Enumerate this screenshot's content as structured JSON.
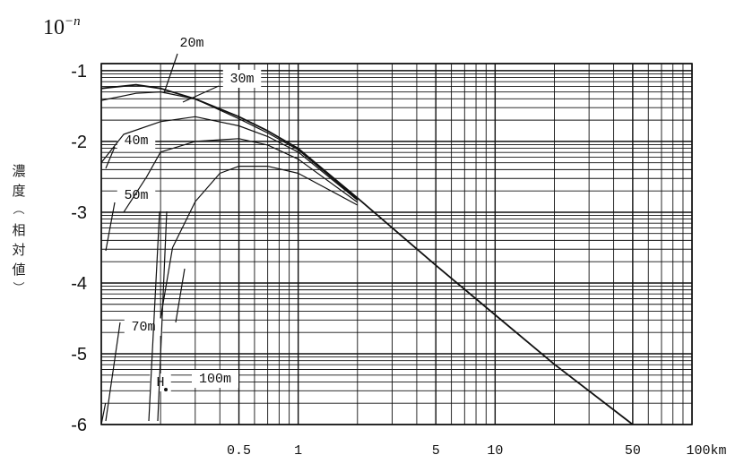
{
  "chart_data": {
    "type": "line",
    "title": "",
    "y_axis": {
      "label_chars": [
        "濃",
        "度",
        "︵",
        "相",
        "対",
        "値",
        "︶"
      ],
      "exponent_base": "10",
      "exponent_sup": "−n",
      "ticks": [
        "-1",
        "-2",
        "-3",
        "-4",
        "-5",
        "-6"
      ],
      "ylim": [
        -6,
        -0.9
      ]
    },
    "x_axis": {
      "scale": "log",
      "ticks": [
        {
          "label": "0.5",
          "value": 0.5
        },
        {
          "label": "1",
          "value": 1
        },
        {
          "label": "5",
          "value": 5
        },
        {
          "label": "10",
          "value": 10
        },
        {
          "label": "50",
          "value": 50
        },
        {
          "label": "100km",
          "value": 100
        }
      ],
      "xlim": [
        0.1,
        100
      ]
    },
    "grid": true,
    "series": [
      {
        "name": "20m",
        "x": [
          0.1,
          0.15,
          0.2,
          0.3,
          0.5,
          0.7,
          1,
          2,
          5,
          10,
          20,
          50
        ],
        "y": [
          -1.25,
          -1.2,
          -1.25,
          -1.4,
          -1.65,
          -1.85,
          -2.1,
          -2.8,
          -3.75,
          -4.45,
          -5.15,
          -6.0
        ]
      },
      {
        "name": "30m",
        "x": [
          0.1,
          0.15,
          0.2,
          0.3,
          0.5,
          0.7,
          1,
          2
        ],
        "y": [
          -1.42,
          -1.32,
          -1.3,
          -1.4,
          -1.68,
          -1.88,
          -2.12,
          -2.82
        ]
      },
      {
        "name": "40m",
        "x": [
          0.1,
          0.13,
          0.2,
          0.3,
          0.5,
          0.7,
          1,
          2
        ],
        "y": [
          -2.3,
          -1.9,
          -1.72,
          -1.65,
          -1.78,
          -1.93,
          -2.15,
          -2.83
        ]
      },
      {
        "name": "50m",
        "x": [
          0.13,
          0.17,
          0.2,
          0.3,
          0.5,
          0.7,
          1,
          2
        ],
        "y": [
          -3.0,
          -2.5,
          -2.15,
          -2.0,
          -1.96,
          -2.05,
          -2.25,
          -2.86
        ]
      },
      {
        "name": "70m",
        "x": [
          0.2,
          0.23,
          0.3,
          0.4,
          0.5,
          0.7,
          1,
          2
        ],
        "y": [
          -4.5,
          -3.5,
          -2.85,
          -2.45,
          -2.35,
          -2.35,
          -2.45,
          -2.9
        ]
      },
      {
        "name": "100m",
        "x": [
          0.1,
          0.105
        ],
        "y": [
          -6.0,
          -5.7
        ]
      }
    ],
    "annotations": [
      "20m",
      "30m",
      "40m",
      "50m",
      "70m",
      "H",
      "100m"
    ]
  }
}
